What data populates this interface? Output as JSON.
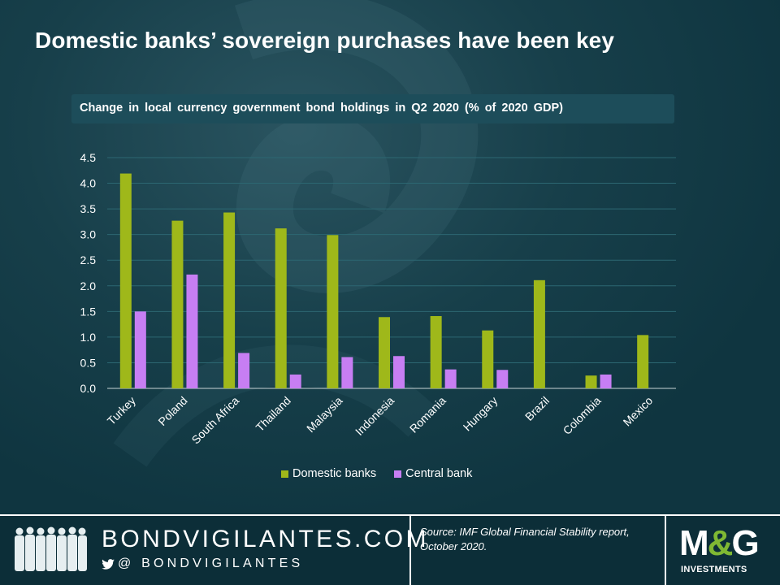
{
  "title": "Domestic banks’ sovereign purchases have been key",
  "chart_data": {
    "type": "bar",
    "title": "Change  in  local  currency  government  bond  holdings  in  Q2  2020  (%  of  2020  GDP)",
    "categories": [
      "Turkey",
      "Poland",
      "South Africa",
      "Thailand",
      "Malaysia",
      "Indonesia",
      "Romania",
      "Hungary",
      "Brazil",
      "Colombia",
      "Mexico"
    ],
    "series": [
      {
        "name": "Domestic banks",
        "color": "#9fb81a",
        "values": [
          4.19,
          3.27,
          3.43,
          3.12,
          2.99,
          1.39,
          1.41,
          1.13,
          2.11,
          0.25,
          1.04
        ]
      },
      {
        "name": "Central bank",
        "color": "#c77ef3",
        "values": [
          1.5,
          2.22,
          0.69,
          0.27,
          0.61,
          0.63,
          0.37,
          0.36,
          null,
          0.27,
          null
        ]
      }
    ],
    "y_ticks": [
      "0.0",
      "0.5",
      "1.0",
      "1.5",
      "2.0",
      "2.5",
      "3.0",
      "3.5",
      "4.0",
      "4.5"
    ],
    "ylim": [
      0,
      4.5
    ],
    "grid": true,
    "legend_position": "bottom"
  },
  "footer": {
    "brand": "BONDVIGILANTES.COM",
    "handle": "@ BONDVIGILANTES",
    "source": "Source: IMF Global Financial Stability report, October 2020.",
    "logo_main_left": "M",
    "logo_main_amp": "&",
    "logo_main_right": "G",
    "logo_sub": "INVESTMENTS"
  }
}
